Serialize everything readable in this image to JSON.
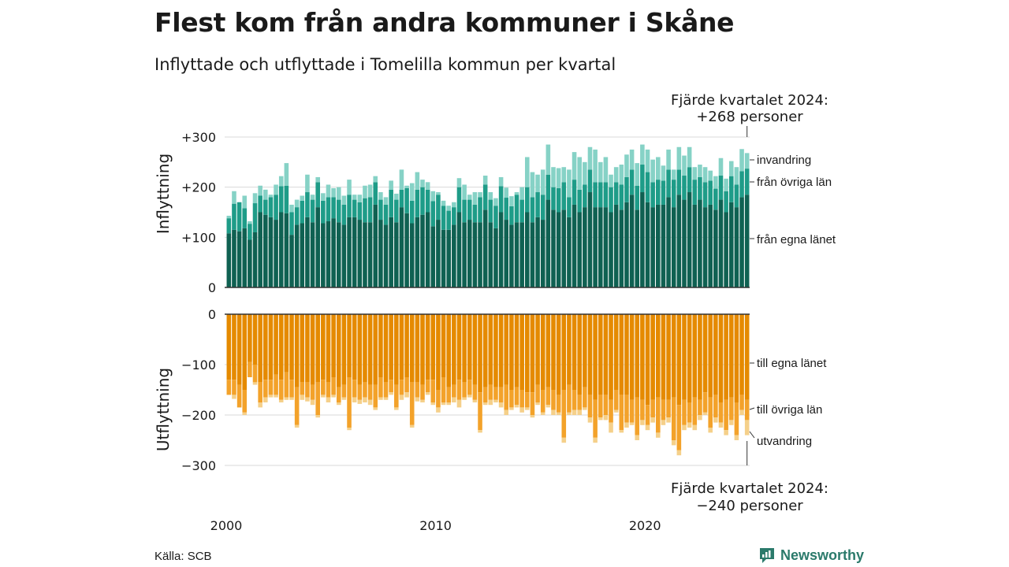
{
  "title": "Flest kom från andra kommuner i Skåne",
  "subtitle": "Inflyttade och utflyttade i Tomelilla kommun per kvartal",
  "source": "Källa: SCB",
  "brand": "Newsworthy",
  "colors": {
    "in_own": "#0f6152",
    "in_other": "#1e9c88",
    "in_foreign": "#86d2c6",
    "out_own": "#e58a00",
    "out_other": "#f3a22a",
    "out_foreign": "#f5d08a",
    "grid": "#d9d9d9",
    "brand": "#2b7a6b"
  },
  "callouts": {
    "in_line1": "Fjärde kvartalet 2024:",
    "in_line2": "+268 personer",
    "out_line1": "Fjärde kvartalet 2024:",
    "out_line2": "−240 personer"
  },
  "legend": {
    "in_foreign": "invandring",
    "in_other": "från övriga län",
    "in_own": "från egna länet",
    "out_own": "till egna länet",
    "out_other": "till övriga län",
    "out_foreign": "utvandring"
  },
  "chart_data": {
    "type": "bar",
    "stacked": true,
    "x_start": "2000 K1",
    "x_end": "2024 K4",
    "x_tick_labels": [
      "2000",
      "2010",
      "2020"
    ],
    "panels": [
      {
        "ylabel": "Inflyttning",
        "ylim": [
          0,
          300
        ],
        "y_tick_labels": [
          "0",
          "+100",
          "+200",
          "+300"
        ],
        "series": [
          {
            "name": "från egna länet",
            "values": [
              108,
              115,
              112,
              118,
              95,
              110,
              150,
              145,
              140,
              135,
              150,
              148,
              105,
              125,
              128,
              140,
              130,
              160,
              128,
              132,
              138,
              130,
              125,
              140,
              140,
              135,
              130,
              130,
              165,
              135,
              125,
              140,
              130,
              160,
              148,
              128,
              140,
              145,
              150,
              122,
              135,
              115,
              115,
              125,
              150,
              130,
              135,
              130,
              130,
              155,
              130,
              118,
              150,
              135,
              125,
              130,
              130,
              150,
              130,
              140,
              135,
              175,
              155,
              150,
              155,
              140,
              165,
              150,
              160,
              190,
              160,
              160,
              160,
              150,
              165,
              155,
              170,
              185,
              155,
              190,
              170,
              160,
              165,
              165,
              180,
              160,
              185,
              175,
              190,
              165,
              175,
              160,
              165,
              155,
              175,
              150,
              170,
              160,
              180,
              185
            ]
          },
          {
            "name": "från övriga län",
            "values": [
              30,
              52,
              58,
              40,
              32,
              58,
              33,
              30,
              40,
              50,
              52,
              55,
              45,
              35,
              45,
              50,
              45,
              50,
              45,
              48,
              42,
              45,
              40,
              45,
              35,
              35,
              48,
              50,
              45,
              40,
              40,
              55,
              45,
              35,
              50,
              45,
              55,
              55,
              45,
              50,
              50,
              48,
              38,
              35,
              50,
              45,
              40,
              35,
              50,
              50,
              45,
              45,
              52,
              44,
              37,
              55,
              45,
              50,
              50,
              50,
              50,
              50,
              45,
              48,
              55,
              40,
              50,
              45,
              45,
              45,
              50,
              50,
              50,
              50,
              45,
              50,
              50,
              50,
              48,
              55,
              60,
              50,
              50,
              48,
              55,
              55,
              50,
              48,
              50,
              50,
              45,
              50,
              48,
              42,
              48,
              42,
              52,
              45,
              52,
              52
            ]
          },
          {
            "name": "invandring",
            "values": [
              5,
              25,
              0,
              25,
              5,
              20,
              20,
              20,
              5,
              20,
              20,
              45,
              15,
              15,
              10,
              35,
              10,
              10,
              15,
              25,
              18,
              25,
              18,
              30,
              10,
              15,
              25,
              25,
              12,
              15,
              15,
              18,
              12,
              40,
              5,
              35,
              35,
              15,
              15,
              20,
              5,
              10,
              10,
              10,
              18,
              30,
              10,
              25,
              10,
              18,
              15,
              15,
              18,
              20,
              20,
              5,
              25,
              60,
              50,
              35,
              50,
              60,
              40,
              40,
              30,
              55,
              55,
              65,
              45,
              45,
              65,
              40,
              50,
              25,
              30,
              40,
              45,
              40,
              45,
              40,
              45,
              45,
              45,
              30,
              40,
              20,
              45,
              40,
              40,
              25,
              25,
              30,
              20,
              25,
              35,
              25,
              30,
              35,
              44,
              31
            ]
          }
        ]
      },
      {
        "ylabel": "Utflyttning",
        "ylim": [
          -300,
          0
        ],
        "y_tick_labels": [
          "0",
          "−100",
          "−200",
          "−300"
        ],
        "series": [
          {
            "name": "till egna länet",
            "values": [
              -130,
              -130,
              -140,
              -150,
              -95,
              -100,
              -135,
              -130,
              -130,
              -120,
              -130,
              -115,
              -130,
              -145,
              -135,
              -135,
              -140,
              -135,
              -130,
              -135,
              -125,
              -145,
              -140,
              -125,
              -130,
              -140,
              -135,
              -140,
              -140,
              -125,
              -135,
              -130,
              -140,
              -130,
              -125,
              -135,
              -135,
              -140,
              -130,
              -130,
              -150,
              -125,
              -145,
              -140,
              -130,
              -135,
              -130,
              -140,
              -155,
              -145,
              -140,
              -145,
              -145,
              -140,
              -150,
              -145,
              -150,
              -155,
              -155,
              -140,
              -150,
              -145,
              -150,
              -160,
              -150,
              -140,
              -150,
              -160,
              -145,
              -160,
              -170,
              -160,
              -160,
              -170,
              -150,
              -160,
              -160,
              -170,
              -165,
              -170,
              -180,
              -170,
              -165,
              -170,
              -170,
              -165,
              -180,
              -170,
              -175,
              -165,
              -170,
              -155,
              -165,
              -160,
              -175,
              -170,
              -165,
              -175,
              -160,
              -170
            ]
          },
          {
            "name": "till övriga län",
            "values": [
              -30,
              -30,
              -45,
              -45,
              -30,
              -35,
              -40,
              -35,
              -30,
              -40,
              -40,
              -50,
              -35,
              -75,
              -25,
              -30,
              -30,
              -65,
              -30,
              -30,
              -35,
              -30,
              -25,
              -100,
              -35,
              -30,
              -30,
              -30,
              -45,
              -40,
              -30,
              -25,
              -45,
              -30,
              -30,
              -85,
              -30,
              -30,
              -25,
              -45,
              -35,
              -50,
              -30,
              -25,
              -40,
              -30,
              -30,
              -30,
              -75,
              -30,
              -30,
              -25,
              -30,
              -50,
              -35,
              -35,
              -35,
              -30,
              -45,
              -35,
              -45,
              -35,
              -40,
              -35,
              -95,
              -55,
              -40,
              -30,
              -40,
              -45,
              -75,
              -45,
              -40,
              -45,
              -40,
              -70,
              -55,
              -45,
              -75,
              -40,
              -40,
              -35,
              -70,
              -40,
              -35,
              -85,
              -90,
              -50,
              -40,
              -55,
              -30,
              -40,
              -60,
              -45,
              -40,
              -60,
              -45,
              -65,
              -30,
              -40
            ]
          },
          {
            "name": "utvandring",
            "values": [
              0,
              -8,
              0,
              -5,
              0,
              -5,
              -10,
              -10,
              -5,
              -5,
              -5,
              -5,
              -5,
              -5,
              -10,
              -8,
              -10,
              -5,
              -5,
              -10,
              -5,
              -5,
              -5,
              -5,
              -10,
              -8,
              -10,
              -10,
              -5,
              -5,
              -5,
              -5,
              -5,
              -10,
              -10,
              -5,
              -8,
              -5,
              -5,
              -5,
              -10,
              -5,
              -5,
              -10,
              -15,
              -5,
              -5,
              -5,
              -5,
              -5,
              -10,
              -5,
              -10,
              -10,
              -5,
              -5,
              -10,
              -5,
              -5,
              -5,
              -5,
              -5,
              -10,
              -5,
              -10,
              -5,
              -10,
              -10,
              -5,
              -10,
              -10,
              -5,
              -10,
              -20,
              -5,
              -5,
              -10,
              -5,
              -10,
              -10,
              -10,
              -10,
              -10,
              -10,
              -10,
              -10,
              -10,
              -10,
              -10,
              -10,
              -10,
              -5,
              -10,
              -10,
              -10,
              -10,
              -10,
              -10,
              -10,
              -30
            ]
          }
        ]
      }
    ]
  }
}
